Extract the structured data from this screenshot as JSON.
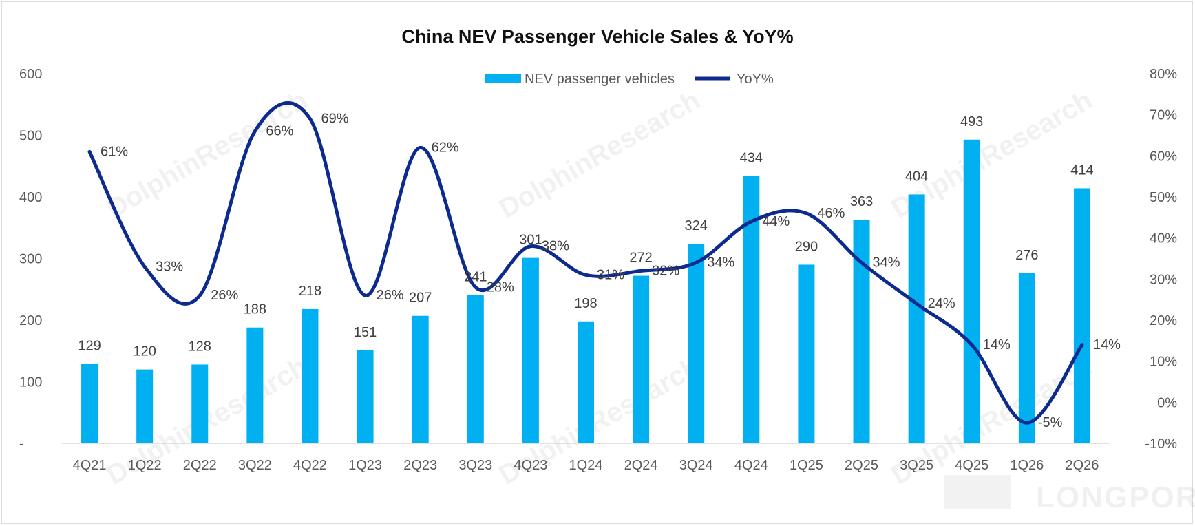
{
  "chart_data": {
    "type": "bar",
    "title": "China NEV Passenger Vehicle Sales & YoY%",
    "categories": [
      "4Q21",
      "1Q22",
      "2Q22",
      "3Q22",
      "4Q22",
      "1Q23",
      "2Q23",
      "3Q23",
      "4Q23",
      "1Q24",
      "2Q24",
      "3Q24",
      "4Q24",
      "1Q25",
      "2Q25",
      "3Q25",
      "4Q25",
      "1Q26",
      "2Q26"
    ],
    "series": [
      {
        "name": "NEV passenger vehicles",
        "type": "bar",
        "axis": "left",
        "color": "#00B0F0",
        "values": [
          129,
          120,
          128,
          188,
          218,
          151,
          207,
          241,
          301,
          198,
          272,
          324,
          434,
          290,
          363,
          404,
          493,
          276,
          414
        ]
      },
      {
        "name": "YoY%",
        "type": "line",
        "axis": "right",
        "smooth": true,
        "color": "#0D2A8F",
        "values": [
          61,
          33,
          26,
          66,
          69,
          26,
          62,
          28,
          38,
          31,
          32,
          34,
          44,
          46,
          34,
          24,
          14,
          -5,
          14
        ]
      }
    ],
    "value_labels": [
      "129",
      "120",
      "128",
      "188",
      "218",
      "151",
      "207",
      "241",
      "301",
      "198",
      "272",
      "324",
      "434",
      "290",
      "363",
      "404",
      "493",
      "276",
      "414"
    ],
    "pct_labels": [
      "61%",
      "33%",
      "26%",
      "66%",
      "69%",
      "26%",
      "62%",
      "28%",
      "38%",
      "31%",
      "32%",
      "34%",
      "44%",
      "46%",
      "34%",
      "24%",
      "14%",
      "-5%",
      "14%"
    ],
    "left_axis": {
      "ylim": [
        0,
        600
      ],
      "ticks": [
        "-",
        "100",
        "200",
        "300",
        "400",
        "500",
        "600"
      ]
    },
    "right_axis": {
      "ylim": [
        -10,
        80
      ],
      "ticks": [
        "-10%",
        "0%",
        "10%",
        "20%",
        "30%",
        "40%",
        "50%",
        "60%",
        "70%",
        "80%"
      ]
    },
    "legend": {
      "position": "top",
      "entries": [
        "NEV passenger vehicles",
        "YoY%"
      ]
    },
    "grid": false
  },
  "watermarks": {
    "text": "DolphinResearch",
    "brand": "LONGPORT"
  }
}
